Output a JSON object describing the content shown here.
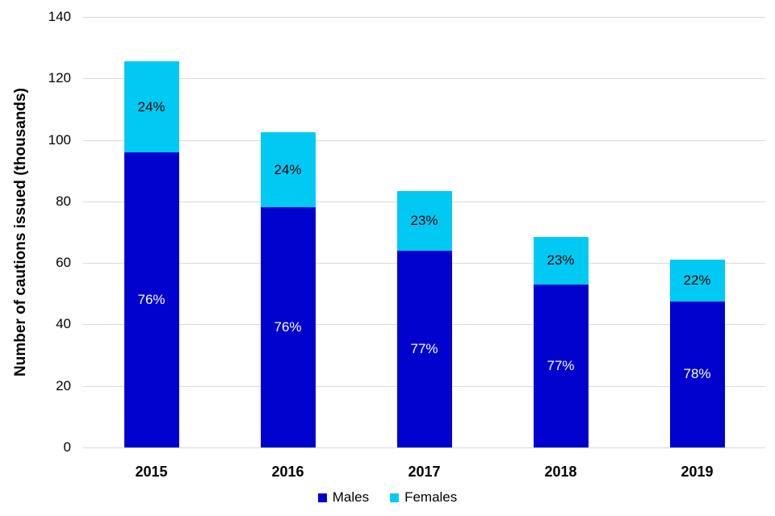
{
  "page": {
    "background": "#ffffff",
    "text_color": "#000000"
  },
  "chart_data": {
    "type": "bar",
    "stacked": true,
    "title": "",
    "xlabel": "",
    "ylabel": "Number of cautions issued (thousands)",
    "categories": [
      "2015",
      "2016",
      "2017",
      "2018",
      "2019"
    ],
    "series": [
      {
        "name": "Males",
        "color": "#0202ce",
        "values": [
          96,
          78,
          64,
          53,
          47.5
        ],
        "segment_labels": [
          "76%",
          "76%",
          "77%",
          "77%",
          "78%"
        ],
        "label_color": "#ffffff"
      },
      {
        "name": "Females",
        "color": "#00c9f4",
        "values": [
          29.5,
          24.5,
          19.5,
          15.5,
          13.5
        ],
        "segment_labels": [
          "24%",
          "24%",
          "23%",
          "23%",
          "22%"
        ],
        "label_color": "#000000"
      }
    ],
    "ylim": [
      0,
      140
    ],
    "yticks": [
      0,
      20,
      40,
      60,
      80,
      100,
      120,
      140
    ],
    "grid": true,
    "gridline_color": "#d9d9d9",
    "legend_position": "bottom",
    "legend": [
      "Males",
      "Females"
    ]
  }
}
